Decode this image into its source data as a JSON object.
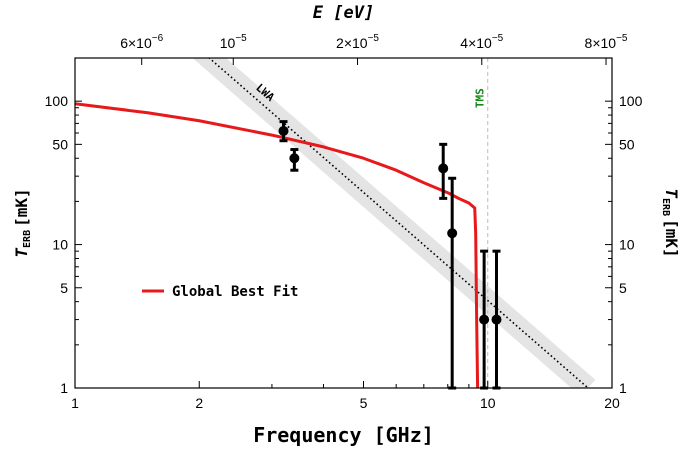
{
  "chart_data": {
    "type": "scatter",
    "title": "",
    "xlabel": "Frequency [GHz]",
    "x_top_label": "E [eV]",
    "ylabel_left": "T_ERB [mK]",
    "ylabel_right": "T_ERB [mK]",
    "ylabel_base": "T",
    "ylabel_sub": "ERB",
    "ylabel_unit": "[mK]",
    "x_scale": "log",
    "y_scale": "log",
    "xlim": [
      1,
      20
    ],
    "ylim": [
      1,
      200
    ],
    "grid": false,
    "x_ticks": [
      1,
      2,
      5,
      10,
      20
    ],
    "x_tick_labels": [
      "1",
      "2",
      "5",
      "10",
      "20"
    ],
    "y_ticks": [
      1,
      5,
      10,
      50,
      100
    ],
    "y_tick_labels": [
      "1",
      "5",
      "10",
      "50",
      "100"
    ],
    "top_ticks_ev": [
      6e-06,
      1e-05,
      2e-05,
      4e-05,
      8e-05
    ],
    "top_tick_labels": [
      {
        "mant": "6×10",
        "exp": "−6"
      },
      {
        "mant": "",
        "exp": "−5",
        "base": "10"
      },
      {
        "mant": "2×10",
        "exp": "−5"
      },
      {
        "mant": "4×10",
        "exp": "−5"
      },
      {
        "mant": "8×10",
        "exp": "−5"
      }
    ],
    "ev_per_ghz": 4.1357e-06,
    "legend": {
      "position": "left-center",
      "entries": [
        {
          "label": "Global Best Fit",
          "color": "#e8191b"
        }
      ]
    },
    "series": [
      {
        "name": "Global Best Fit",
        "kind": "line",
        "color": "#e8191b",
        "x": [
          1.0,
          1.5,
          2.0,
          3.0,
          4.0,
          5.0,
          6.0,
          7.0,
          8.0,
          8.5,
          9.0,
          9.3,
          9.35,
          9.4,
          9.45
        ],
        "y": [
          96,
          83,
          73,
          58,
          48,
          40,
          33,
          27,
          23,
          21,
          19.5,
          18,
          12,
          3,
          1
        ]
      },
      {
        "name": "LWA",
        "kind": "power-law-band",
        "x": [
          2.0,
          17.5
        ],
        "y": [
          230,
          1
        ],
        "band_color": "#e4e4e4",
        "line_color": "#000000"
      },
      {
        "name": "data",
        "kind": "points",
        "color": "#000000",
        "points": [
          {
            "x": 3.2,
            "y": 62,
            "ylo": 53,
            "yhi": 72
          },
          {
            "x": 3.4,
            "y": 40,
            "ylo": 33,
            "yhi": 46
          },
          {
            "x": 7.8,
            "y": 34,
            "ylo": 21,
            "yhi": 50
          },
          {
            "x": 8.2,
            "y": 12,
            "ylo": 1,
            "yhi": 29
          },
          {
            "x": 9.8,
            "y": 3,
            "ylo": 1,
            "yhi": 9
          },
          {
            "x": 10.5,
            "y": 3,
            "ylo": 1,
            "yhi": 9
          }
        ]
      }
    ],
    "annotations": [
      {
        "text": "LWA",
        "x": 2.85,
        "y": 110,
        "color": "#000000"
      },
      {
        "text": "TMS",
        "x": 10.0,
        "y": 105,
        "color": "#16881b"
      }
    ],
    "vline": {
      "x": 10.0,
      "style": "dashed",
      "color": "#bbbbbb"
    }
  }
}
